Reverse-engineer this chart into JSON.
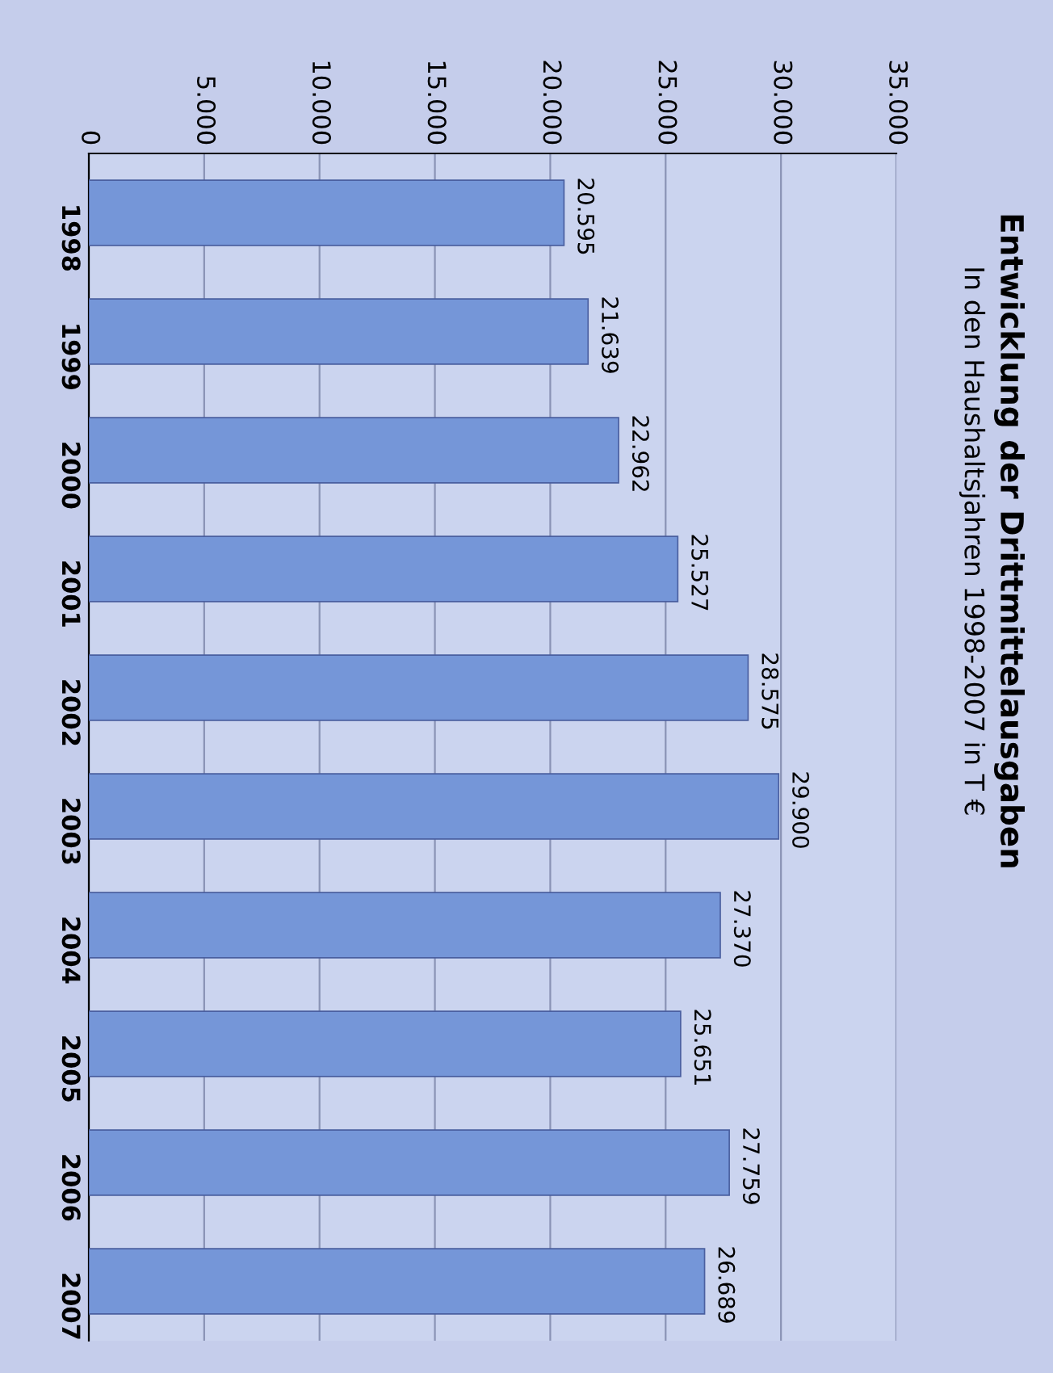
{
  "chart_data": {
    "type": "bar",
    "orientation": "horizontal",
    "title": "Entwicklung der Drittmittelausgaben",
    "subtitle": "In den Haushaltsjahren 1998-2007 in T €",
    "categories": [
      "1998",
      "1999",
      "2000",
      "2001",
      "2002",
      "2003",
      "2004",
      "2005",
      "2006",
      "2007"
    ],
    "values": [
      20595,
      21639,
      22962,
      25527,
      28575,
      29900,
      27370,
      25651,
      27759,
      26689
    ],
    "value_labels": [
      "20.595",
      "21.639",
      "22.962",
      "25.527",
      "28.575",
      "29.900",
      "27.370",
      "25.651",
      "27.759",
      "26.689"
    ],
    "color": "#7596d8",
    "xlim": [
      0,
      35000
    ],
    "xticks": [
      0,
      {
        "value": 5000,
        "label": "5.000"
      },
      {
        "value": 10000,
        "label": "10.000"
      },
      {
        "value": 15000,
        "label": "15.000"
      },
      {
        "value": 20000,
        "label": "20.000"
      },
      {
        "value": 25000,
        "label": "25.000"
      },
      {
        "value": 30000,
        "label": "30.000"
      },
      {
        "value": 35000,
        "label": "35.000"
      }
    ],
    "grid": "x",
    "legend": false
  }
}
